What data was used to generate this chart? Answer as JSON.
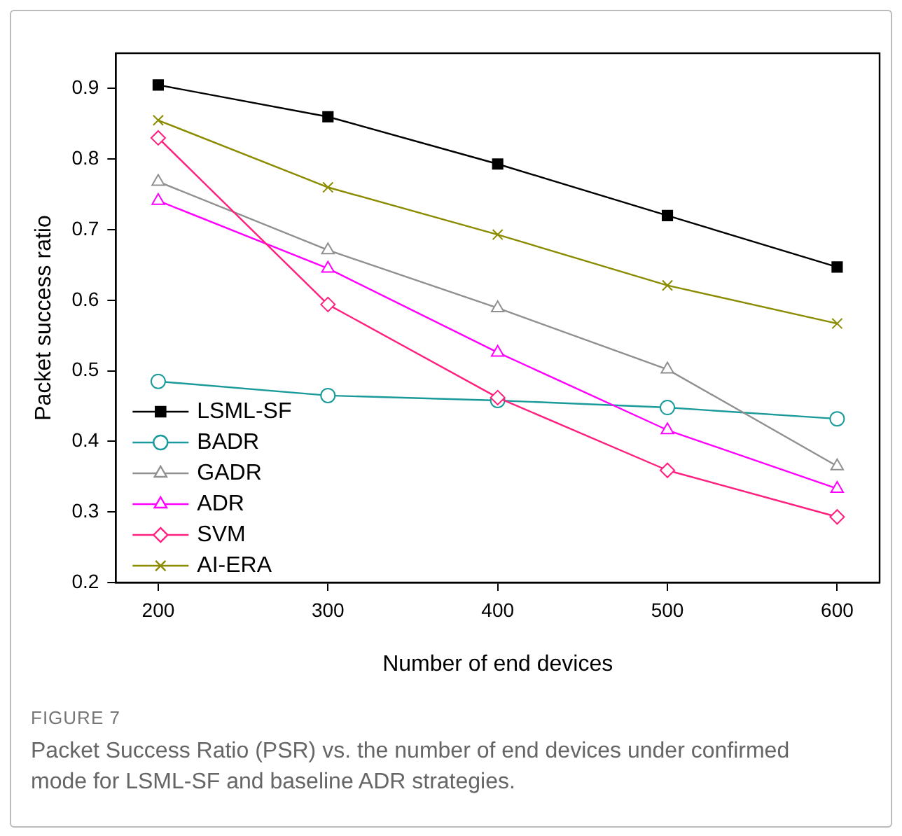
{
  "chart_data": {
    "type": "line",
    "xlabel": "Number of end devices",
    "ylabel": "Packet success ratio",
    "x": [
      200,
      300,
      400,
      500,
      600
    ],
    "xlim": [
      175,
      625
    ],
    "xticks": [
      200,
      300,
      400,
      500,
      600
    ],
    "ylim": [
      0.2,
      0.95
    ],
    "yticks": [
      0.2,
      0.3,
      0.4,
      0.5,
      0.6,
      0.7,
      0.8,
      0.9
    ],
    "grid": false,
    "legend": "bottom left",
    "line_style": "solid",
    "series": [
      {
        "name": "LSML-SF",
        "color": "#000000",
        "marker": "square",
        "values": [
          0.905,
          0.86,
          0.793,
          0.72,
          0.647
        ]
      },
      {
        "name": "BADR",
        "color": "#1a9a9a",
        "marker": "circle",
        "values": [
          0.485,
          0.465,
          0.458,
          0.448,
          0.432
        ]
      },
      {
        "name": "GADR",
        "color": "#909090",
        "marker": "triangle",
        "values": [
          0.768,
          0.671,
          0.589,
          0.502,
          0.365
        ]
      },
      {
        "name": "ADR",
        "color": "#ff00ff",
        "marker": "triangle",
        "values": [
          0.741,
          0.645,
          0.526,
          0.416,
          0.333
        ]
      },
      {
        "name": "SVM",
        "color": "#ff1f7f",
        "marker": "diamond",
        "values": [
          0.83,
          0.594,
          0.462,
          0.359,
          0.293
        ]
      },
      {
        "name": "AI-ERA",
        "color": "#8b8b00",
        "marker": "cross",
        "values": [
          0.855,
          0.76,
          0.693,
          0.621,
          0.567
        ]
      }
    ],
    "annotations": [
      "FIGURE 7",
      "Packet Success Ratio (PSR) vs. the number of end devices under confirmed mode for LSML-SF and baseline ADR strategies."
    ]
  }
}
